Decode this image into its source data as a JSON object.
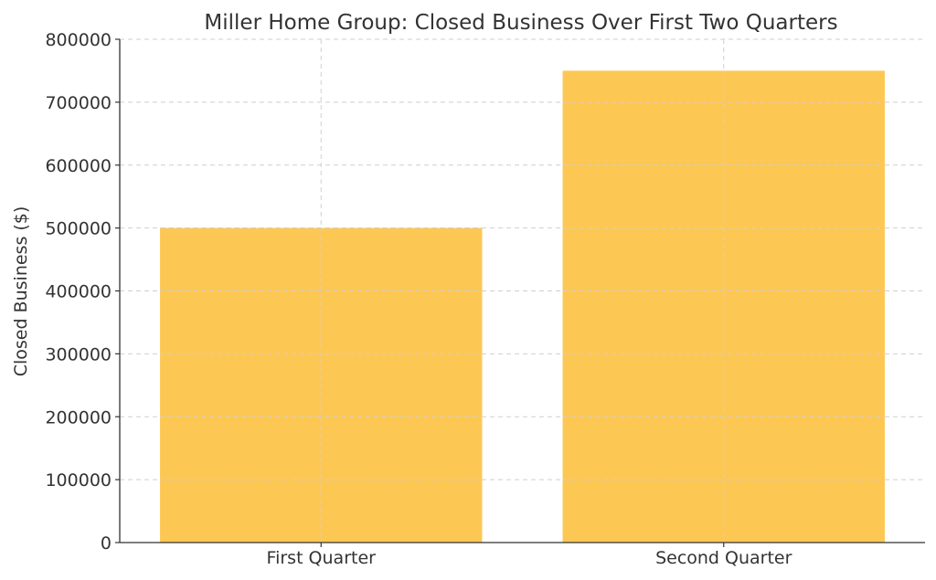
{
  "chart_data": {
    "type": "bar",
    "title": "Miller Home Group: Closed Business Over First Two Quarters",
    "xlabel": "",
    "ylabel": "Closed Business ($)",
    "categories": [
      "First Quarter",
      "Second Quarter"
    ],
    "values": [
      500000,
      750000
    ],
    "ylim": [
      0,
      800000
    ],
    "yticks": [
      0,
      100000,
      200000,
      300000,
      400000,
      500000,
      600000,
      700000,
      800000
    ],
    "grid": true,
    "legend": false,
    "bar_color": "#FDC54E"
  }
}
